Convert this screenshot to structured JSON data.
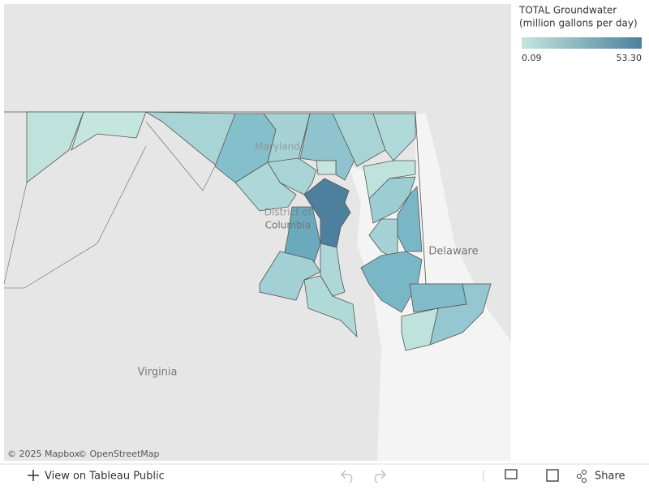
{
  "legend": {
    "title_line1": "TOTAL Groundwater",
    "title_line2": "(million gallons per day)",
    "min": "0.09",
    "max": "53.30"
  },
  "map_labels": {
    "maryland": "Maryland",
    "dc_line1": "District of",
    "dc_line2": "Columbia",
    "delaware": "Delaware",
    "virginia": "Virginia"
  },
  "attribution": {
    "mapbox": "© 2025 Mapbox",
    "osm": "© OpenStreetMap"
  },
  "toolbar": {
    "view": "View on Tableau Public",
    "share": "Share"
  }
}
